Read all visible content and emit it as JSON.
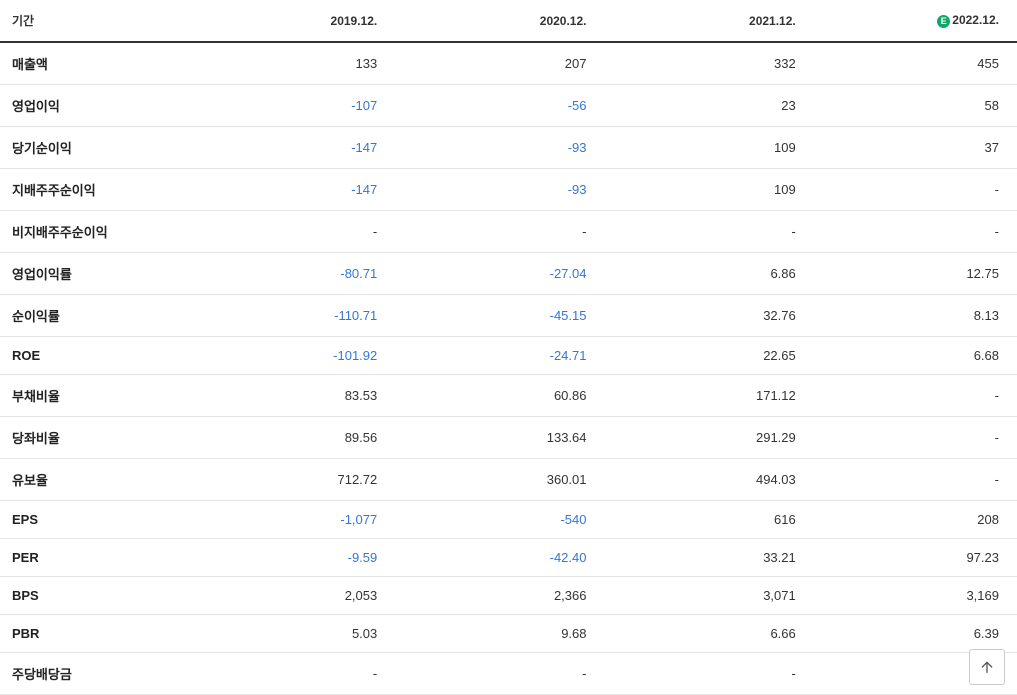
{
  "table": {
    "header_label": "기간",
    "columns": [
      "2019.12.",
      "2020.12.",
      "2021.12.",
      "2022.12."
    ],
    "estimate_column_index": 3,
    "estimate_badge": "E",
    "negative_color": "#3376d6",
    "text_color": "#333333",
    "border_color": "#e5e5e5",
    "header_border_color": "#333333",
    "rows": [
      {
        "label": "매출액",
        "values": [
          "133",
          "207",
          "332",
          "455"
        ],
        "negative": [
          false,
          false,
          false,
          false
        ]
      },
      {
        "label": "영업이익",
        "values": [
          "-107",
          "-56",
          "23",
          "58"
        ],
        "negative": [
          true,
          true,
          false,
          false
        ]
      },
      {
        "label": "당기순이익",
        "values": [
          "-147",
          "-93",
          "109",
          "37"
        ],
        "negative": [
          true,
          true,
          false,
          false
        ]
      },
      {
        "label": "지배주주순이익",
        "values": [
          "-147",
          "-93",
          "109",
          "-"
        ],
        "negative": [
          true,
          true,
          false,
          false
        ]
      },
      {
        "label": "비지배주주순이익",
        "values": [
          "-",
          "-",
          "-",
          "-"
        ],
        "negative": [
          false,
          false,
          false,
          false
        ]
      },
      {
        "label": "영업이익률",
        "values": [
          "-80.71",
          "-27.04",
          "6.86",
          "12.75"
        ],
        "negative": [
          true,
          true,
          false,
          false
        ]
      },
      {
        "label": "순이익률",
        "values": [
          "-110.71",
          "-45.15",
          "32.76",
          "8.13"
        ],
        "negative": [
          true,
          true,
          false,
          false
        ]
      },
      {
        "label": "ROE",
        "values": [
          "-101.92",
          "-24.71",
          "22.65",
          "6.68"
        ],
        "negative": [
          true,
          true,
          false,
          false
        ]
      },
      {
        "label": "부채비율",
        "values": [
          "83.53",
          "60.86",
          "171.12",
          "-"
        ],
        "negative": [
          false,
          false,
          false,
          false
        ]
      },
      {
        "label": "당좌비율",
        "values": [
          "89.56",
          "133.64",
          "291.29",
          "-"
        ],
        "negative": [
          false,
          false,
          false,
          false
        ]
      },
      {
        "label": "유보율",
        "values": [
          "712.72",
          "360.01",
          "494.03",
          "-"
        ],
        "negative": [
          false,
          false,
          false,
          false
        ]
      },
      {
        "label": "EPS",
        "values": [
          "-1,077",
          "-540",
          "616",
          "208"
        ],
        "negative": [
          true,
          true,
          false,
          false
        ]
      },
      {
        "label": "PER",
        "values": [
          "-9.59",
          "-42.40",
          "33.21",
          "97.23"
        ],
        "negative": [
          true,
          true,
          false,
          false
        ]
      },
      {
        "label": "BPS",
        "values": [
          "2,053",
          "2,366",
          "3,071",
          "3,169"
        ],
        "negative": [
          false,
          false,
          false,
          false
        ]
      },
      {
        "label": "PBR",
        "values": [
          "5.03",
          "9.68",
          "6.66",
          "6.39"
        ],
        "negative": [
          false,
          false,
          false,
          false
        ]
      },
      {
        "label": "주당배당금",
        "values": [
          "-",
          "-",
          "-",
          "-"
        ],
        "negative": [
          false,
          false,
          false,
          false
        ]
      }
    ]
  }
}
